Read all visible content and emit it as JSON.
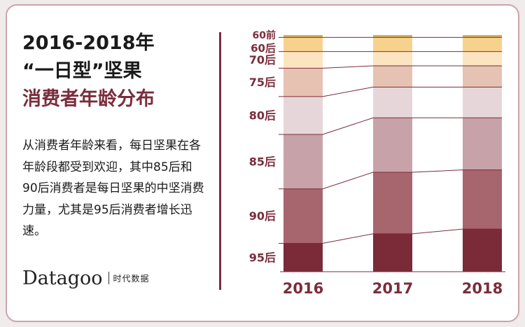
{
  "title": {
    "line1": "2016-2018年",
    "line2": "“一日型”坚果",
    "line3": "消费者年龄分布"
  },
  "description": "从消费者年龄来看，每日坚果在各年龄段都受到欢迎，其中85后和90后消费者是每日坚果的中坚消费力量，尤其是95后消费者增长迅速。",
  "brand": {
    "logo": "Datagoo",
    "sub": "时代数据"
  },
  "chart_data": {
    "type": "bar",
    "stacked": true,
    "categories": [
      "2016",
      "2017",
      "2018"
    ],
    "series": [
      {
        "name": "60前",
        "color": "#d6b05a",
        "values": [
          1,
          1,
          1
        ]
      },
      {
        "name": "60后",
        "color": "#f7d28f",
        "values": [
          6,
          6,
          6
        ]
      },
      {
        "name": "70后",
        "color": "#fce4c0",
        "values": [
          7,
          6,
          6
        ]
      },
      {
        "name": "75后",
        "color": "#e6c2b2",
        "values": [
          12,
          9,
          9
        ]
      },
      {
        "name": "80后",
        "color": "#e6d6da",
        "values": [
          16,
          13,
          13
        ]
      },
      {
        "name": "85后",
        "color": "#c8a2a9",
        "values": [
          23,
          23,
          22
        ]
      },
      {
        "name": "90后",
        "color": "#a7656d",
        "values": [
          23,
          26,
          25
        ]
      },
      {
        "name": "95后",
        "color": "#7b2a37",
        "values": [
          12,
          16,
          18
        ]
      }
    ],
    "ylim": [
      0,
      100
    ],
    "legend": "left"
  }
}
